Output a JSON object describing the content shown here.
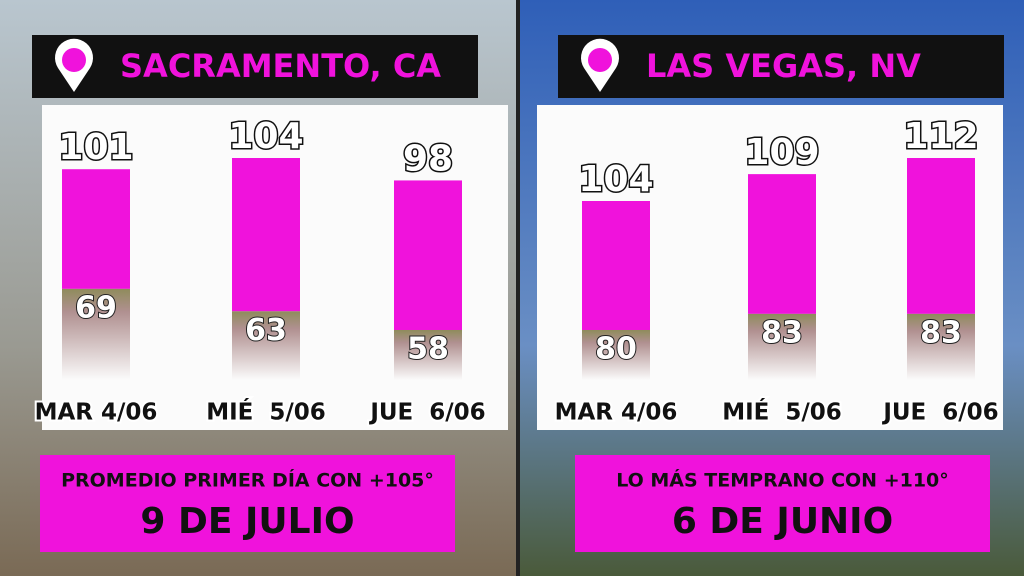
{
  "chart_data": [
    {
      "type": "range_bar",
      "title": "SACRAMENTO, CA",
      "categories": [
        "MAR 4/06",
        "MIÉ  5/06",
        "JUE  6/06"
      ],
      "highs": [
        101,
        104,
        98
      ],
      "lows": [
        69,
        63,
        58
      ],
      "color": "#f012dc",
      "low_color": "#8f8c5c",
      "note": "PROMEDIO PRIMER DÍA CON +105°",
      "note_value": "9 DE JULIO"
    },
    {
      "type": "range_bar",
      "title": "LAS VEGAS, NV",
      "categories": [
        "MAR 4/06",
        "MIÉ  5/06",
        "JUE  6/06"
      ],
      "highs": [
        104,
        109,
        112
      ],
      "lows": [
        80,
        83,
        83
      ],
      "color": "#f012dc",
      "low_color": "#8f8c5c",
      "note": "LO MÁS TEMPRANO CON +110°",
      "note_value": "6 DE JUNIO"
    }
  ]
}
